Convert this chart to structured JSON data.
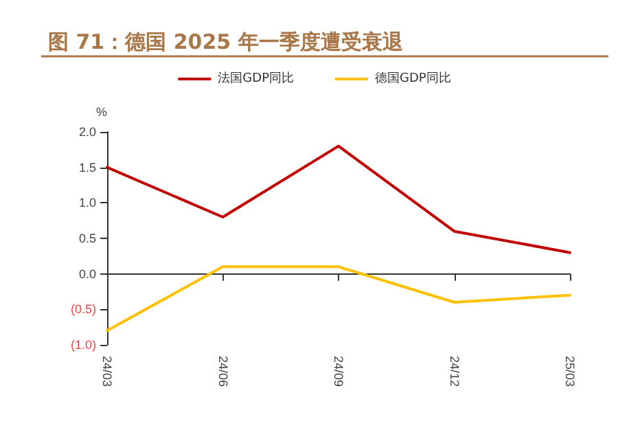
{
  "chart_data": {
    "type": "line",
    "title": "图 71：德国 2025 年一季度遭受衰退",
    "ylabel": "%",
    "categories": [
      "24/03",
      "24/06",
      "24/09",
      "24/12",
      "25/03"
    ],
    "series": [
      {
        "name": "法国GDP同比",
        "color": "#c00000",
        "values": [
          1.5,
          0.8,
          1.8,
          0.6,
          0.3
        ]
      },
      {
        "name": "德国GDP同比",
        "color": "#ffc000",
        "values": [
          -0.8,
          0.1,
          0.1,
          -0.4,
          -0.3
        ]
      }
    ],
    "ylim": [
      -1,
      2
    ],
    "yticks": [
      {
        "value": -1,
        "label": "(1.0)"
      },
      {
        "value": -0.5,
        "label": "(0.5)"
      },
      {
        "value": 0,
        "label": "0.0"
      },
      {
        "value": 0.5,
        "label": "0.5"
      },
      {
        "value": 1,
        "label": "1.0"
      },
      {
        "value": 1.5,
        "label": "1.5"
      },
      {
        "value": 2,
        "label": "2.0"
      }
    ],
    "legend": "top",
    "marker": "none",
    "line_style": "solid"
  }
}
